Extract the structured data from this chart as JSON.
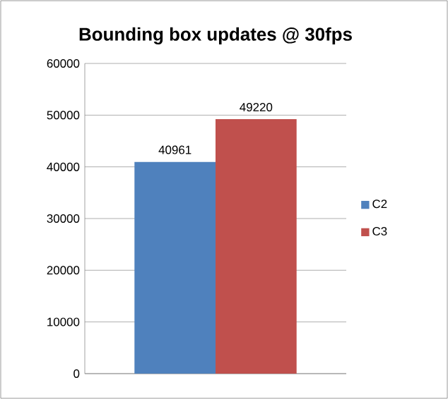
{
  "chart_data": {
    "type": "bar",
    "title": "Bounding box updates @ 30fps",
    "categories": [
      null
    ],
    "series": [
      {
        "name": "C2",
        "color": "#4f81bd",
        "values": [
          40961
        ]
      },
      {
        "name": "C3",
        "color": "#c0504d",
        "values": [
          49220
        ]
      }
    ],
    "ylim": [
      0,
      60000
    ],
    "yticks": [
      0,
      10000,
      20000,
      30000,
      40000,
      50000,
      60000
    ],
    "grid": "y",
    "legend": "right",
    "data_labels": true
  }
}
